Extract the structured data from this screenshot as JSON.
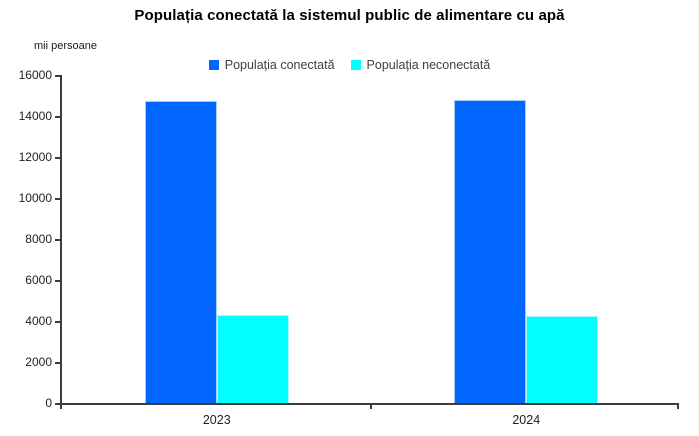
{
  "title": "Populația conectată la sistemul public de alimentare cu apă",
  "unit_label": "mii persoane",
  "colors": {
    "connected": "#0066FF",
    "not_connected": "#00FFFF",
    "axis": "#3c3c3c",
    "legend_text": "#404040"
  },
  "chart_data": {
    "type": "bar",
    "title": "Populația conectată la sistemul public de alimentare cu apă",
    "xlabel": "",
    "ylabel": "mii persoane",
    "categories": [
      "2023",
      "2024"
    ],
    "series": [
      {
        "name": "Populația conectată",
        "color": "#0066FF",
        "values": [
          14720,
          14790
        ]
      },
      {
        "name": "Populația neconectată",
        "color": "#00FFFF",
        "values": [
          4290,
          4250
        ]
      }
    ],
    "ylim": [
      0,
      16000
    ],
    "ytick_step": 2000,
    "yticks": [
      0,
      2000,
      4000,
      6000,
      8000,
      10000,
      12000,
      14000,
      16000
    ],
    "grid": false,
    "legend_position": "top"
  }
}
